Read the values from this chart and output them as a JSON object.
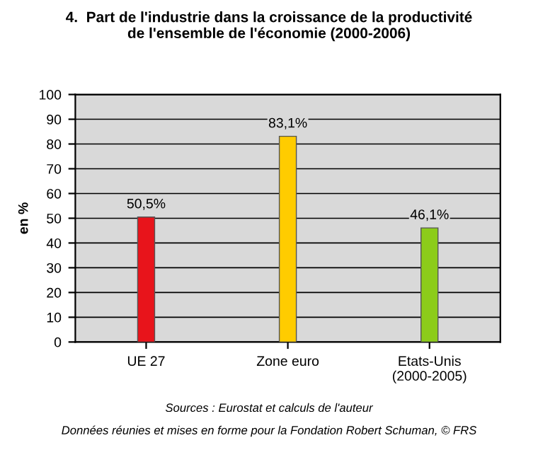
{
  "chart_data": {
    "type": "bar",
    "title": "4.  Part de l'industrie dans la croissance de la productivité\nde l'ensemble de l'économie (2000-2006)",
    "ylabel": "en %",
    "categories": [
      "UE 27",
      "Zone euro",
      "Etats-Unis\n(2000-2005)"
    ],
    "values": [
      50.5,
      83.1,
      46.1
    ],
    "colors": [
      "#e8141b",
      "#ffcc00",
      "#8ccc1a"
    ],
    "value_labels": [
      "50,5%",
      "83,1%",
      "46,1%"
    ],
    "ylim": [
      0,
      100
    ],
    "yticks": [
      0,
      10,
      20,
      30,
      40,
      50,
      60,
      70,
      80,
      90,
      100
    ],
    "grid": "y",
    "annotations": [
      "Sources : Eurostat et calculs de l'auteur",
      "Données réunies et mises en forme pour la Fondation Robert Schuman, © FRS"
    ]
  }
}
